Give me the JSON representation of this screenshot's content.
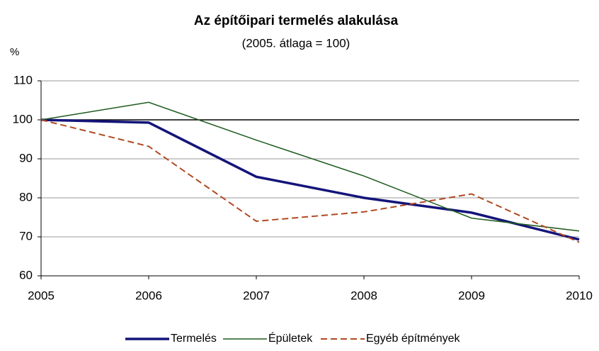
{
  "chart_data": {
    "type": "line",
    "title": "Az építőipari termelés alakulása",
    "subtitle": "(2005. átlaga = 100)",
    "y_label": "%",
    "x": [
      2005,
      2006,
      2007,
      2008,
      2009,
      2010
    ],
    "xlim": [
      2005,
      2010
    ],
    "xticks": [
      2005,
      2006,
      2007,
      2008,
      2009,
      2010
    ],
    "ylim": [
      60,
      110
    ],
    "yticks": [
      60,
      70,
      80,
      90,
      100,
      110
    ],
    "grid": true,
    "baseline": 100,
    "legend": "bottom",
    "series": [
      {
        "name": "Termelés",
        "color": "#14147a",
        "width": 3.5,
        "dash": false,
        "values": [
          100,
          99.3,
          85.4,
          80,
          76.2,
          69.3
        ]
      },
      {
        "name": "Épületek",
        "color": "#1e5a1e",
        "width": 1.5,
        "dash": false,
        "values": [
          100,
          104.5,
          94.8,
          85.6,
          74.8,
          71.5
        ]
      },
      {
        "name": "Egyéb építmények",
        "color": "#b04a22",
        "width": 2,
        "dash": true,
        "values": [
          100,
          93.2,
          74,
          76.4,
          81,
          68.6
        ]
      }
    ]
  }
}
